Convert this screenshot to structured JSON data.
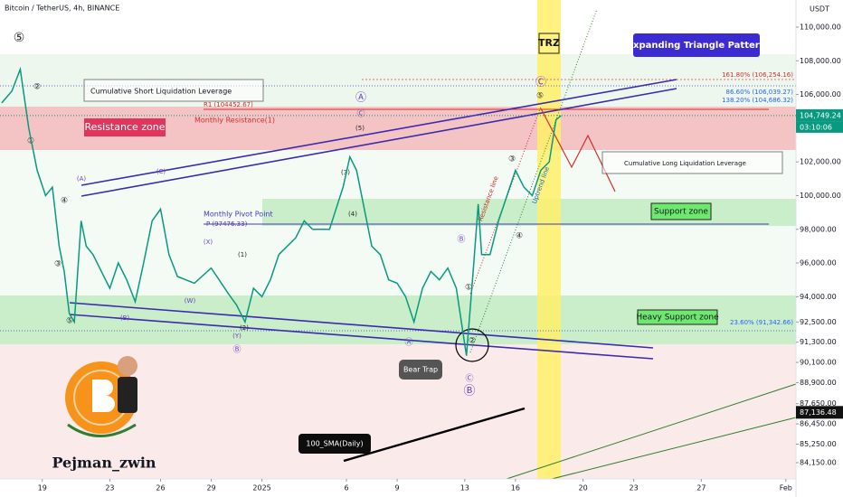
{
  "chart_data": {
    "type": "line",
    "title": "Bitcoin / TetherUS, 4h, BINANCE",
    "unit": "USDT",
    "color": "#089981",
    "x": [
      -2.4,
      -1.8,
      -1.3,
      -0.8,
      -0.3,
      0.2,
      0.6,
      1.0,
      1.3,
      1.6,
      1.9,
      2.3,
      2.6,
      3.0,
      3.5,
      4.0,
      4.5,
      5.0,
      5.5,
      6.0,
      6.5,
      7.0,
      7.5,
      8.0,
      9.0,
      10.0,
      11.0,
      11.5,
      12.0,
      12.5,
      13.0,
      13.5,
      14.0,
      15.0,
      15.5,
      16.0,
      17.0,
      17.8,
      18.2,
      18.6,
      19.0,
      19.5,
      20.0,
      20.5,
      21.0,
      21.5,
      22.0,
      22.5,
      23.0,
      23.5,
      24.0,
      24.5,
      25.1,
      25.5,
      25.8,
      26.0,
      26.5,
      27.0,
      27.5,
      28.0,
      28.5,
      29.0,
      29.5,
      30.0,
      30.4,
      30.7
    ],
    "values": [
      105500,
      106200,
      107500,
      104000,
      101500,
      100000,
      100500,
      97000,
      95500,
      93000,
      92500,
      98500,
      97000,
      96500,
      95500,
      94500,
      96000,
      95000,
      93700,
      96000,
      98500,
      99200,
      96500,
      95200,
      94800,
      95700,
      94200,
      93500,
      92500,
      94500,
      94000,
      95000,
      96500,
      97500,
      98500,
      98000,
      98000,
      100500,
      102300,
      101500,
      99500,
      97000,
      96500,
      95000,
      94800,
      94000,
      92500,
      94500,
      95500,
      95000,
      95700,
      94500,
      90500,
      95500,
      99500,
      96500,
      96500,
      98500,
      100000,
      101500,
      100500,
      100000,
      101500,
      102000,
      104500,
      104749.24
    ],
    "xlim": [
      -2.5,
      44.6
    ],
    "ylim": [
      83185,
      111609
    ],
    "xticks": [
      {
        "value": 0,
        "label": "19"
      },
      {
        "value": 4,
        "label": "23"
      },
      {
        "value": 7,
        "label": "26"
      },
      {
        "value": 10,
        "label": "29"
      },
      {
        "value": 13,
        "label": "2025"
      },
      {
        "value": 18,
        "label": "6"
      },
      {
        "value": 21,
        "label": "9"
      },
      {
        "value": 25,
        "label": "13"
      },
      {
        "value": 28,
        "label": "16"
      },
      {
        "value": 32,
        "label": "20"
      },
      {
        "value": 35,
        "label": "23"
      },
      {
        "value": 39,
        "label": "27"
      },
      {
        "value": 44,
        "label": "Feb"
      }
    ],
    "yticks": [
      {
        "value": 110000,
        "label": "110,000.00"
      },
      {
        "value": 108000,
        "label": "108,000.00"
      },
      {
        "value": 106000,
        "label": "106,000.00"
      },
      {
        "value": 102000,
        "label": "102,000.00"
      },
      {
        "value": 100000,
        "label": "100,000.00"
      },
      {
        "value": 98000,
        "label": "98,000.00"
      },
      {
        "value": 96000,
        "label": "96,000.00"
      },
      {
        "value": 94000,
        "label": "94,000.00"
      },
      {
        "value": 92500,
        "label": "92,500.00"
      },
      {
        "value": 91300,
        "label": "91,300.00"
      },
      {
        "value": 90100,
        "label": "90,100.00"
      },
      {
        "value": 88900,
        "label": "88,900.00"
      },
      {
        "value": 87650,
        "label": "87,650.00"
      },
      {
        "value": 86450,
        "label": "86,450.00"
      },
      {
        "value": 85250,
        "label": "85,250.00"
      },
      {
        "value": 84150,
        "label": "84,150.00"
      }
    ],
    "last_price": {
      "value": 104749.24,
      "label": "104,749.24"
    },
    "countdown": "03:10:06",
    "sma_price": {
      "value": 87136.48,
      "label": "87,136.48"
    },
    "annotations": [
      "Cumulative Short Liquidation Leverage",
      "Resistance zone",
      "R1 (104452.67)",
      "Monthly Resistance(1)",
      "161.80% (106,254.16)",
      "86.60% (106,039.27)",
      "138.20% (104,686.32)",
      "Expanding Triangle Pattern",
      "TRZ",
      "Cumulative Long Liquidation Leverage",
      "Monthly Pivot Point",
      "P (97476.33)",
      "Support zone",
      "Heavy Support zone",
      "23.60% (91,342.66)",
      "Bear Trap",
      "100_SMA(Daily)",
      "Pejman_zwin",
      "Resistance line",
      "Uptrend line",
      "⑤",
      "②",
      "①",
      "④",
      "③",
      "⑤",
      "(A)",
      "(B)",
      "(C)",
      "(X)",
      "(W)",
      "(Y)",
      "Ⓑ",
      "(1)",
      "(2)",
      "(3)",
      "(4)",
      "(5)",
      "Ⓐ",
      "Ⓒ",
      "Ⓐ",
      "Ⓑ",
      "①",
      "②",
      "Ⓒ",
      "Ⓑ",
      "③",
      "④",
      "⑤",
      "Ⓒ"
    ]
  }
}
